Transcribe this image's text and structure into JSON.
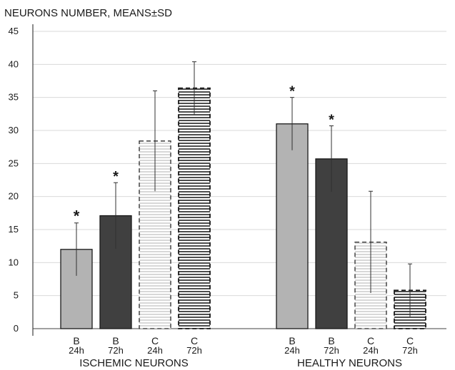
{
  "chart_data": {
    "type": "bar",
    "ylabel": "NEURONS NUMBER, MEANS±SD",
    "ylim": [
      0,
      45
    ],
    "yticks": [
      0,
      5,
      10,
      15,
      20,
      25,
      30,
      35,
      40,
      45
    ],
    "grid": true,
    "groups": [
      {
        "label": "ISCHEMIC NEURONS",
        "bars": [
          {
            "category": "B",
            "time": "24h",
            "value": 12.0,
            "sd": 4.0,
            "significant": true,
            "style": "solid-light",
            "star": "*"
          },
          {
            "category": "B",
            "time": "72h",
            "value": 17.1,
            "sd": 5.0,
            "significant": true,
            "style": "solid-dark",
            "star": "*"
          },
          {
            "category": "C",
            "time": "24h",
            "value": 28.4,
            "sd": 7.6,
            "significant": false,
            "style": "hatch-light"
          },
          {
            "category": "C",
            "time": "72h",
            "value": 36.4,
            "sd": 4.0,
            "significant": false,
            "style": "hatch-dark"
          }
        ]
      },
      {
        "label": "HEALTHY NEURONS",
        "bars": [
          {
            "category": "B",
            "time": "24h",
            "value": 31.0,
            "sd": 4.0,
            "significant": true,
            "style": "solid-light",
            "star": "*"
          },
          {
            "category": "B",
            "time": "72h",
            "value": 25.7,
            "sd": 5.0,
            "significant": true,
            "style": "solid-dark",
            "star": "*"
          },
          {
            "category": "C",
            "time": "24h",
            "value": 13.1,
            "sd": 7.7,
            "significant": false,
            "style": "hatch-light"
          },
          {
            "category": "C",
            "time": "72h",
            "value": 5.8,
            "sd": 4.0,
            "significant": false,
            "style": "hatch-dark"
          }
        ]
      }
    ],
    "colors": {
      "solid-light": "#b3b3b3",
      "solid-dark": "#404040",
      "hatch-light-bg": "#ffffff",
      "hatch-light-line": "#c4c4c4",
      "hatch-dark-bg": "#ffffff",
      "hatch-dark-line": "#3a3a3a",
      "grid": "#d9d9d9",
      "axis": "#404040",
      "error": "#303030"
    }
  }
}
